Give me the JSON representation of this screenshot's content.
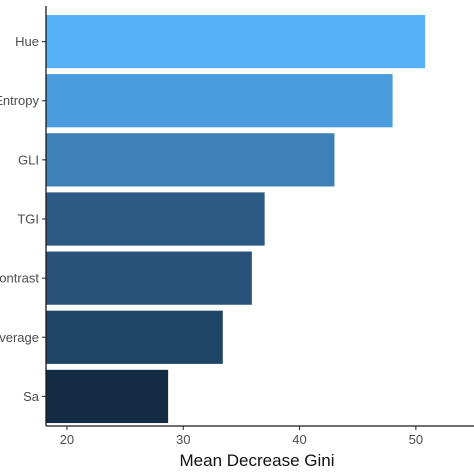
{
  "chart_data": {
    "type": "bar",
    "orientation": "horizontal",
    "categories": [
      "Hue",
      "Entropy",
      "GLI",
      "TGI",
      "Contrast",
      "Average",
      "Sa"
    ],
    "values": [
      50.8,
      48.0,
      43.0,
      37.0,
      35.9,
      33.4,
      28.7
    ],
    "colors": [
      "#56b1f7",
      "#4a9cdc",
      "#3d80b8",
      "#2c5a85",
      "#285279",
      "#1f4566",
      "#132b43"
    ],
    "xlabel": "Mean Decrease Gini",
    "ylabel": "",
    "xlim": [
      18.2,
      55
    ],
    "xticks": [
      20,
      30,
      40,
      50
    ],
    "xtick_labels": [
      "20",
      "30",
      "40",
      "50"
    ],
    "grid": false,
    "legend": "none"
  }
}
